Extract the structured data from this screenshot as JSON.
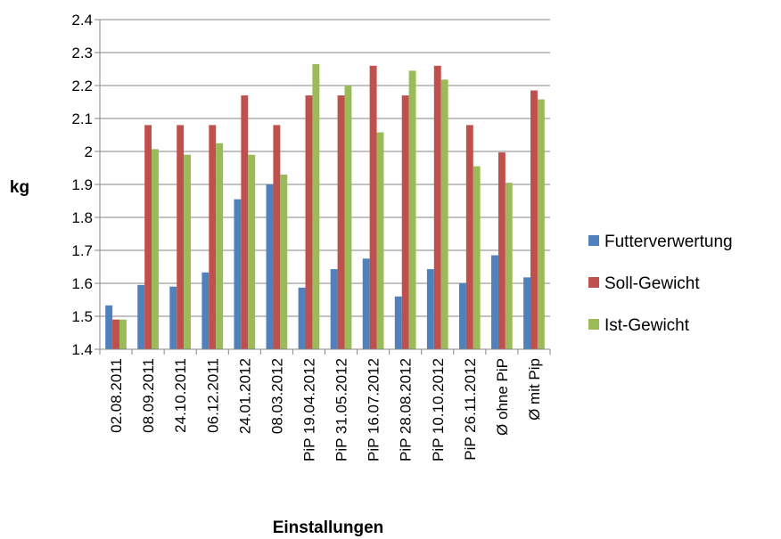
{
  "chart_data": {
    "type": "bar",
    "title": "",
    "xlabel": "Einstallungen",
    "ylabel": "kg",
    "ylim": [
      1.4,
      2.4
    ],
    "yticks": [
      "1.4",
      "1.5",
      "1.6",
      "1.7",
      "1.8",
      "1.9",
      "2",
      "2.1",
      "2.2",
      "2.3",
      "2.4"
    ],
    "grid": true,
    "legend_position": "right",
    "categories": [
      "02.08.2011",
      "08.09.2011",
      "24.10.2011",
      "06.12.2011",
      "24.01.2012",
      "08.03.2012",
      "PiP 19.04.2012",
      "PiP 31.05.2012",
      "PiP 16.07.2012",
      "PiP 28.08.2012",
      "PiP 10.10.2012",
      "PiP 26.11.2012",
      "Ø ohne PiP",
      "Ø mit Pip"
    ],
    "series": [
      {
        "name": "Futterverwertung",
        "color": "#4f81bd",
        "values": [
          1.533,
          1.595,
          1.59,
          1.633,
          1.855,
          1.9,
          1.587,
          1.643,
          1.675,
          1.56,
          1.643,
          1.6,
          1.685,
          1.618
        ]
      },
      {
        "name": "Soll-Gewicht",
        "color": "#c0504d",
        "values": [
          1.49,
          2.08,
          2.08,
          2.08,
          2.17,
          2.08,
          2.17,
          2.17,
          2.26,
          2.17,
          2.26,
          2.08,
          1.997,
          2.185
        ]
      },
      {
        "name": "Ist-Gewicht",
        "color": "#9bbb59",
        "values": [
          1.49,
          2.007,
          1.99,
          2.025,
          1.99,
          1.93,
          2.265,
          2.2,
          2.058,
          2.245,
          2.218,
          1.955,
          1.905,
          2.158
        ]
      }
    ]
  }
}
